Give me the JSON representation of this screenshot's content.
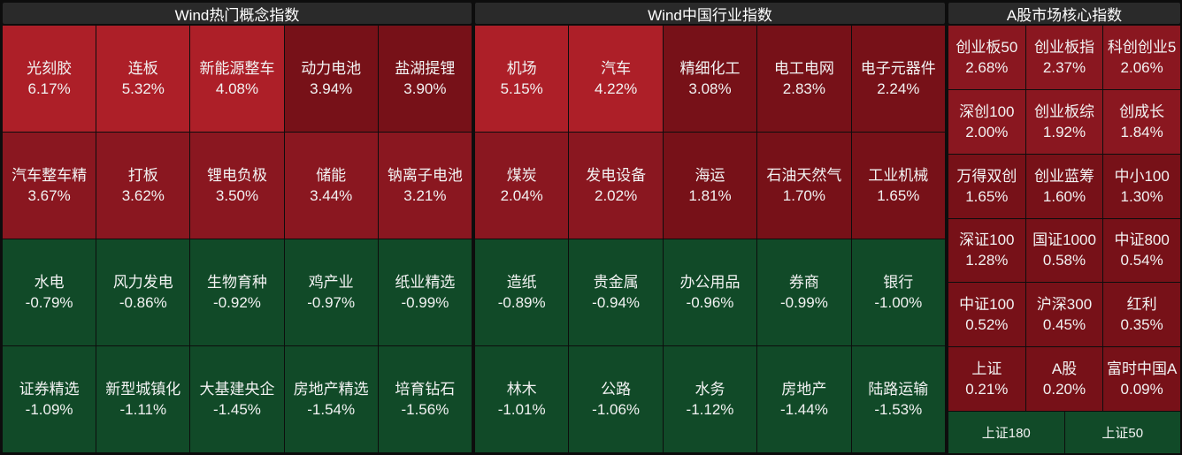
{
  "panels": [
    {
      "title": "Wind热门概念指数",
      "rows": [
        [
          {
            "name": "光刻胶",
            "value": "6.17%",
            "tone": "bright"
          },
          {
            "name": "连板",
            "value": "5.32%",
            "tone": "bright"
          },
          {
            "name": "新能源整车",
            "value": "4.08%",
            "tone": "bright"
          },
          {
            "name": "动力电池",
            "value": "3.94%",
            "tone": "dark"
          },
          {
            "name": "盐湖提锂",
            "value": "3.90%",
            "tone": "dark"
          }
        ],
        [
          {
            "name": "汽车整车精",
            "value": "3.67%",
            "tone": "mid"
          },
          {
            "name": "打板",
            "value": "3.62%",
            "tone": "mid"
          },
          {
            "name": "锂电负极",
            "value": "3.50%",
            "tone": "mid"
          },
          {
            "name": "储能",
            "value": "3.44%",
            "tone": "mid"
          },
          {
            "name": "钠离子电池",
            "value": "3.21%",
            "tone": "mid"
          }
        ],
        [
          {
            "name": "水电",
            "value": "-0.79%",
            "tone": "green"
          },
          {
            "name": "风力发电",
            "value": "-0.86%",
            "tone": "green"
          },
          {
            "name": "生物育种",
            "value": "-0.92%",
            "tone": "green"
          },
          {
            "name": "鸡产业",
            "value": "-0.97%",
            "tone": "green"
          },
          {
            "name": "纸业精选",
            "value": "-0.99%",
            "tone": "green"
          }
        ],
        [
          {
            "name": "证券精选",
            "value": "-1.09%",
            "tone": "green"
          },
          {
            "name": "新型城镇化",
            "value": "-1.11%",
            "tone": "green"
          },
          {
            "name": "大基建央企",
            "value": "-1.45%",
            "tone": "green"
          },
          {
            "name": "房地产精选",
            "value": "-1.54%",
            "tone": "green"
          },
          {
            "name": "培育钻石",
            "value": "-1.56%",
            "tone": "green"
          }
        ]
      ]
    },
    {
      "title": "Wind中国行业指数",
      "rows": [
        [
          {
            "name": "机场",
            "value": "5.15%",
            "tone": "bright"
          },
          {
            "name": "汽车",
            "value": "4.22%",
            "tone": "bright"
          },
          {
            "name": "精细化工",
            "value": "3.08%",
            "tone": "dark"
          },
          {
            "name": "电工电网",
            "value": "2.83%",
            "tone": "dark"
          },
          {
            "name": "电子元器件",
            "value": "2.24%",
            "tone": "dark"
          }
        ],
        [
          {
            "name": "煤炭",
            "value": "2.04%",
            "tone": "mid"
          },
          {
            "name": "发电设备",
            "value": "2.02%",
            "tone": "mid"
          },
          {
            "name": "海运",
            "value": "1.81%",
            "tone": "dark"
          },
          {
            "name": "石油天然气",
            "value": "1.70%",
            "tone": "dark"
          },
          {
            "name": "工业机械",
            "value": "1.65%",
            "tone": "dark"
          }
        ],
        [
          {
            "name": "造纸",
            "value": "-0.89%",
            "tone": "green"
          },
          {
            "name": "贵金属",
            "value": "-0.94%",
            "tone": "green"
          },
          {
            "name": "办公用品",
            "value": "-0.96%",
            "tone": "green"
          },
          {
            "name": "券商",
            "value": "-0.99%",
            "tone": "green"
          },
          {
            "name": "银行",
            "value": "-1.00%",
            "tone": "green"
          }
        ],
        [
          {
            "name": "林木",
            "value": "-1.01%",
            "tone": "green"
          },
          {
            "name": "公路",
            "value": "-1.06%",
            "tone": "green"
          },
          {
            "name": "水务",
            "value": "-1.12%",
            "tone": "green"
          },
          {
            "name": "房地产",
            "value": "-1.44%",
            "tone": "green"
          },
          {
            "name": "陆路运输",
            "value": "-1.53%",
            "tone": "green"
          }
        ]
      ]
    },
    {
      "title": "A股市场核心指数",
      "rows": [
        [
          {
            "name": "创业板50",
            "value": "2.68%",
            "tone": "mid"
          },
          {
            "name": "创业板指",
            "value": "2.37%",
            "tone": "mid"
          },
          {
            "name": "科创创业5",
            "value": "2.06%",
            "tone": "mid"
          }
        ],
        [
          {
            "name": "深创100",
            "value": "2.00%",
            "tone": "mid"
          },
          {
            "name": "创业板综",
            "value": "1.92%",
            "tone": "mid"
          },
          {
            "name": "创成长",
            "value": "1.84%",
            "tone": "mid"
          }
        ],
        [
          {
            "name": "万得双创",
            "value": "1.65%",
            "tone": "dark"
          },
          {
            "name": "创业蓝筹",
            "value": "1.60%",
            "tone": "dark"
          },
          {
            "name": "中小100",
            "value": "1.30%",
            "tone": "dark"
          }
        ],
        [
          {
            "name": "深证100",
            "value": "1.28%",
            "tone": "dark"
          },
          {
            "name": "国证1000",
            "value": "0.58%",
            "tone": "dark"
          },
          {
            "name": "中证800",
            "value": "0.54%",
            "tone": "dark"
          }
        ],
        [
          {
            "name": "中证100",
            "value": "0.52%",
            "tone": "dark"
          },
          {
            "name": "沪深300",
            "value": "0.45%",
            "tone": "dark"
          },
          {
            "name": "红利",
            "value": "0.35%",
            "tone": "dark"
          }
        ],
        [
          {
            "name": "上证",
            "value": "0.21%",
            "tone": "dark"
          },
          {
            "name": "A股",
            "value": "0.20%",
            "tone": "dark"
          },
          {
            "name": "富时中国A",
            "value": "0.09%",
            "tone": "dark"
          }
        ]
      ],
      "bottom": [
        "上证180",
        "上证50"
      ]
    }
  ],
  "colors": {
    "bright": "#ad1f28",
    "mid": "#8a1720",
    "dark": "#771118",
    "green": "#114a28"
  }
}
